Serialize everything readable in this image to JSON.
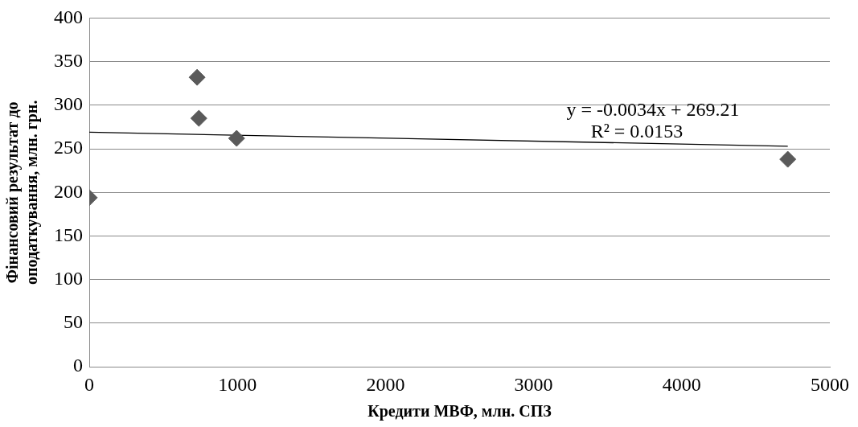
{
  "chart_data": {
    "type": "scatter",
    "xlabel": "Кредити МВФ, млн. СПЗ",
    "ylabel": "Фінансовий результат до\nоподаткування, млн. грн.",
    "series": [
      {
        "color": "#5a5a5a",
        "marker": "diamond",
        "x": [
          0,
          728,
          740,
          995,
          4716
        ],
        "values": [
          194,
          332,
          285,
          262,
          238
        ]
      },
      {
        "type": "line",
        "color": "#000000",
        "marker": "none",
        "line_style": "solid",
        "x": [
          0,
          4716
        ],
        "values": [
          269,
          253
        ]
      }
    ],
    "annotations": [
      "y = -0.0034x + 269.21",
      "R² = 0.0153"
    ],
    "xlim": [
      0,
      5000
    ],
    "xticks": [
      0,
      1000,
      2000,
      3000,
      4000,
      5000
    ],
    "ylim": [
      0,
      400
    ],
    "yticks": [
      0,
      50,
      100,
      150,
      200,
      250,
      300,
      350,
      400
    ],
    "grid": "y",
    "legend": false
  }
}
